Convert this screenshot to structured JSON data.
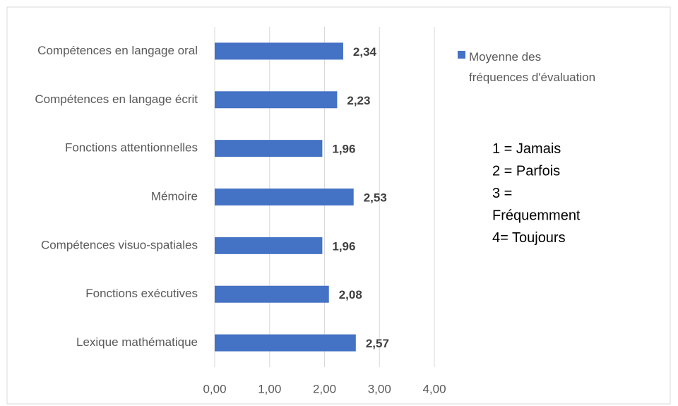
{
  "chart_data": {
    "type": "bar",
    "orientation": "horizontal",
    "categories": [
      "Compétences en langage oral",
      "Compétences en langage écrit",
      "Fonctions  attentionnelles",
      "Mémoire",
      "Compétences visuo-spatiales",
      "Fonctions exécutives",
      "Lexique mathématique"
    ],
    "series": [
      {
        "name": "Moyenne des fréquences d'évaluation",
        "color": "#4472c4",
        "values": [
          2.34,
          2.23,
          1.96,
          2.53,
          1.96,
          2.08,
          2.57
        ],
        "value_labels": [
          "2,34",
          "2,23",
          "1,96",
          "2,53",
          "1,96",
          "2,08",
          "2,57"
        ]
      }
    ],
    "xlim": [
      0,
      4
    ],
    "xticks": [
      {
        "value": 0,
        "label": "0,00"
      },
      {
        "value": 1,
        "label": "1,00"
      },
      {
        "value": 2,
        "label": "2,00"
      },
      {
        "value": 3,
        "label": "3,00"
      },
      {
        "value": 4,
        "label": "4,00"
      }
    ],
    "grid": true,
    "legend": "right",
    "annotation": [
      "1 = Jamais",
      "2 = Parfois",
      "3 = Fréquemment",
      "4= Toujours"
    ]
  }
}
